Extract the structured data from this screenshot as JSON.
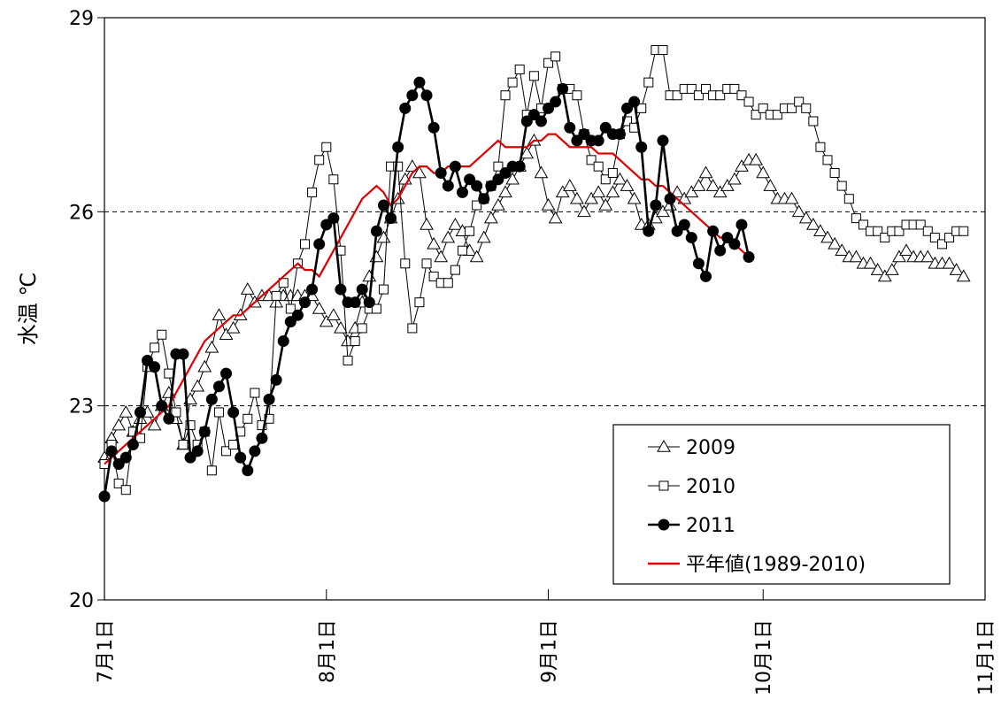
{
  "chart_data": {
    "type": "line",
    "ylabel": "水温 ℃",
    "xlabel": "",
    "ylim": [
      20,
      29
    ],
    "yticks": [
      "20",
      "23",
      "26",
      "29"
    ],
    "xlim": [
      "7月1日",
      "11月1日"
    ],
    "xticks": [
      "7月1日",
      "8月1日",
      "9月1日",
      "10月1日",
      "11月1日"
    ],
    "grid_lines_y": [
      23,
      26
    ],
    "legend_position": "bottom-right",
    "series": [
      {
        "name": "2009",
        "style": "thin-line-open-triangle",
        "color": "#000000",
        "values": [
          22.2,
          22.5,
          22.7,
          22.9,
          22.6,
          22.8,
          22.9,
          22.7,
          23.0,
          23.2,
          22.8,
          22.4,
          23.1,
          23.3,
          23.6,
          23.9,
          24.4,
          24.1,
          24.2,
          24.4,
          24.8,
          24.6,
          24.7,
          24.7,
          24.6,
          24.7,
          24.7,
          24.7,
          24.7,
          24.7,
          24.5,
          24.3,
          24.4,
          24.2,
          24.0,
          24.2,
          24.6,
          25.0,
          25.3,
          25.6,
          25.9,
          26.2,
          26.5,
          26.7,
          26.6,
          25.8,
          25.5,
          25.3,
          25.6,
          25.8,
          25.7,
          25.4,
          25.3,
          25.6,
          25.9,
          26.1,
          26.3,
          26.5,
          26.7,
          26.9,
          27.1,
          26.6,
          26.1,
          25.9,
          26.3,
          26.4,
          26.2,
          26.0,
          26.2,
          26.3,
          26.1,
          26.3,
          26.5,
          26.4,
          26.2,
          25.8,
          25.8,
          25.9,
          26.0,
          26.1,
          26.3,
          26.2,
          26.3,
          26.4,
          26.6,
          26.4,
          26.3,
          26.4,
          26.5,
          26.7,
          26.8,
          26.8,
          26.6,
          26.4,
          26.2,
          26.2,
          26.2,
          26.0,
          25.9,
          25.8,
          25.7,
          25.6,
          25.5,
          25.4,
          25.3,
          25.3,
          25.2,
          25.2,
          25.1,
          25.0,
          25.1,
          25.3,
          25.4,
          25.3,
          25.3,
          25.3,
          25.2,
          25.2,
          25.2,
          25.1,
          25.0
        ]
      },
      {
        "name": "2010",
        "style": "thin-line-open-square",
        "color": "#000000",
        "values": [
          22.1,
          22.4,
          21.8,
          21.7,
          22.6,
          22.5,
          23.6,
          23.9,
          24.1,
          23.5,
          22.9,
          22.4,
          22.7,
          22.4,
          22.6,
          22.0,
          22.9,
          22.3,
          22.4,
          22.6,
          22.8,
          23.2,
          22.7,
          22.8,
          24.7,
          24.9,
          24.5,
          25.2,
          25.5,
          26.3,
          26.8,
          27.0,
          26.5,
          25.4,
          23.7,
          24.0,
          24.2,
          24.5,
          24.5,
          24.8,
          26.7,
          26.7,
          25.2,
          24.2,
          24.6,
          25.2,
          25.0,
          24.9,
          24.9,
          25.1,
          25.4,
          25.7,
          26.1,
          26.2,
          26.4,
          26.7,
          27.8,
          28.0,
          28.2,
          27.5,
          28.1,
          27.6,
          28.3,
          28.4,
          27.9,
          27.9,
          27.8,
          27.2,
          26.8,
          26.7,
          26.5,
          26.6,
          27.2,
          27.4,
          27.3,
          27.6,
          28.0,
          28.5,
          28.5,
          27.8,
          27.8,
          27.9,
          27.9,
          27.8,
          27.9,
          27.8,
          27.8,
          27.9,
          27.9,
          27.8,
          27.7,
          27.5,
          27.6,
          27.5,
          27.5,
          27.6,
          27.6,
          27.7,
          27.6,
          27.4,
          27.0,
          26.8,
          26.6,
          26.4,
          26.2,
          25.9,
          25.8,
          25.7,
          25.7,
          25.6,
          25.7,
          25.7,
          25.8,
          25.8,
          25.8,
          25.7,
          25.6,
          25.5,
          25.6,
          25.7,
          25.7
        ]
      },
      {
        "name": "2011",
        "style": "thick-line-filled-circle",
        "color": "#000000",
        "values": [
          21.6,
          22.3,
          22.1,
          22.2,
          22.4,
          22.9,
          23.7,
          23.6,
          23.0,
          22.8,
          23.8,
          23.8,
          22.2,
          22.3,
          22.6,
          23.1,
          23.3,
          23.5,
          22.9,
          22.2,
          22.0,
          22.3,
          22.5,
          23.1,
          23.4,
          24.0,
          24.3,
          24.4,
          24.6,
          24.8,
          25.5,
          25.8,
          25.9,
          24.8,
          24.6,
          24.6,
          24.8,
          24.6,
          25.7,
          26.1,
          25.9,
          27.0,
          27.6,
          27.8,
          28.0,
          27.8,
          27.3,
          26.6,
          26.4,
          26.7,
          26.3,
          26.5,
          26.4,
          26.2,
          26.4,
          26.5,
          26.6,
          26.7,
          26.7,
          27.4,
          27.5,
          27.4,
          27.6,
          27.7,
          27.9,
          27.3,
          27.1,
          27.2,
          27.1,
          27.1,
          27.3,
          27.2,
          27.2,
          27.6,
          27.7,
          27.0,
          25.7,
          26.1,
          27.1,
          26.2,
          25.7,
          25.8,
          25.6,
          25.2,
          25.0,
          25.7,
          25.4,
          25.6,
          25.5,
          25.8,
          25.3
        ]
      },
      {
        "name": "平年値(1989-2010)",
        "style": "red-line",
        "color": "#e00000",
        "values": [
          22.1,
          22.2,
          22.3,
          22.4,
          22.5,
          22.6,
          22.7,
          22.8,
          22.9,
          23.0,
          23.2,
          23.4,
          23.6,
          23.8,
          24.0,
          24.1,
          24.2,
          24.3,
          24.4,
          24.4,
          24.5,
          24.6,
          24.7,
          24.8,
          24.9,
          25.0,
          25.1,
          25.2,
          25.1,
          25.1,
          25.0,
          25.2,
          25.4,
          25.6,
          25.8,
          26.0,
          26.2,
          26.3,
          26.4,
          26.3,
          26.1,
          26.2,
          26.4,
          26.6,
          26.7,
          26.7,
          26.6,
          26.6,
          26.7,
          26.7,
          26.7,
          26.7,
          26.8,
          26.9,
          27.0,
          27.1,
          27.0,
          27.0,
          27.0,
          27.0,
          27.1,
          27.1,
          27.2,
          27.2,
          27.1,
          27.0,
          27.0,
          27.0,
          27.0,
          26.9,
          26.9,
          26.9,
          26.8,
          26.7,
          26.6,
          26.5,
          26.5,
          26.4,
          26.4,
          26.3,
          26.2,
          26.1,
          26.0,
          25.9,
          25.8,
          25.7,
          25.6,
          25.6,
          25.5,
          25.4,
          25.3
        ]
      }
    ]
  }
}
